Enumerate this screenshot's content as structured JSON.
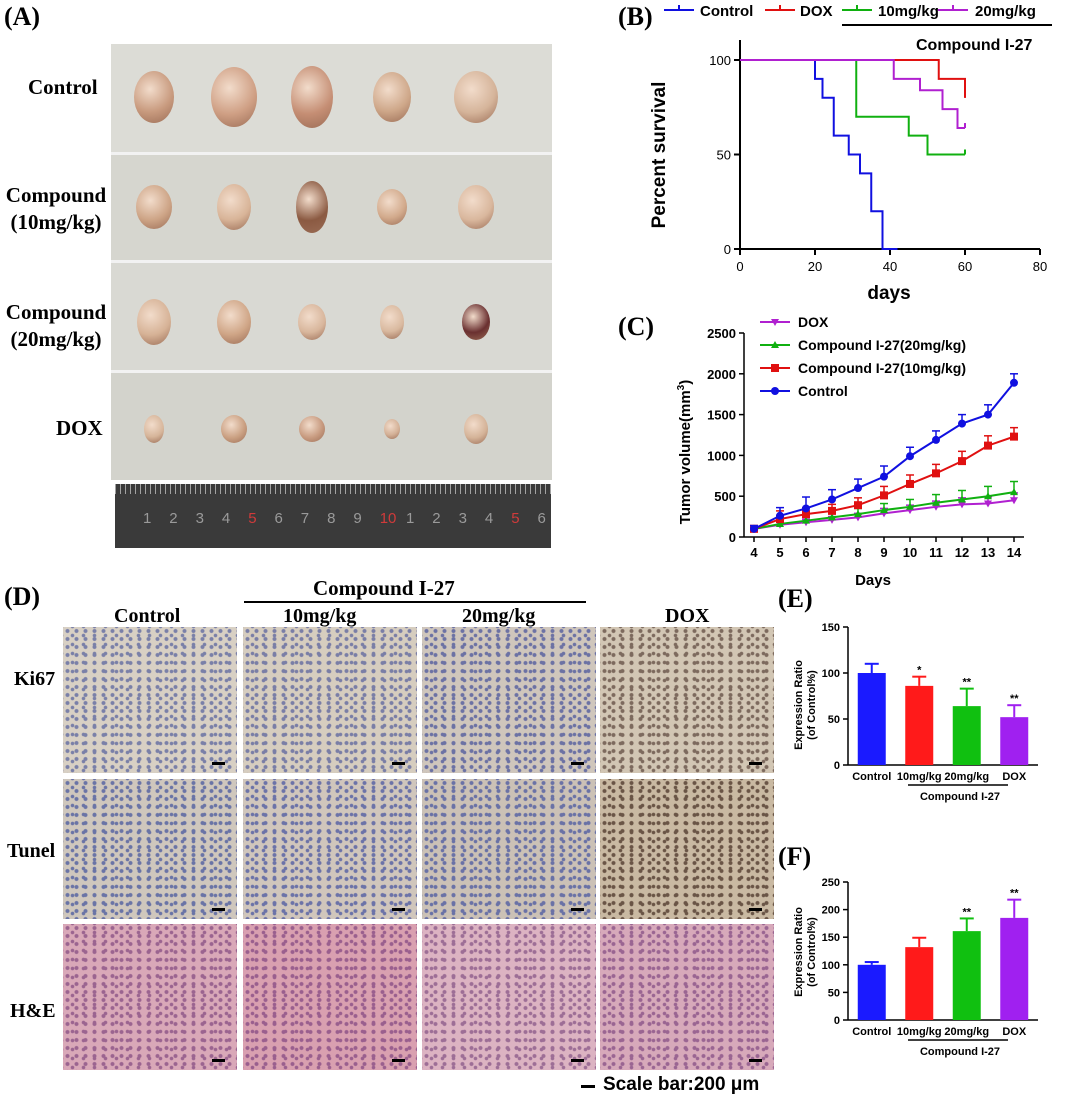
{
  "panelA": {
    "letter": "(A)",
    "rows": [
      {
        "label": [
          "Control"
        ]
      },
      {
        "label": [
          "Compound",
          "(10mg/kg)"
        ]
      },
      {
        "label": [
          "Compound",
          "(20mg/kg)"
        ]
      },
      {
        "label": [
          "DOX"
        ]
      }
    ],
    "ruler_numbers": [
      "1",
      "2",
      "3",
      "4",
      "5",
      "6",
      "7",
      "8",
      "9",
      "10",
      "1",
      "2",
      "3",
      "4",
      "5",
      "6"
    ]
  },
  "panelB": {
    "letter": "(B)",
    "legend": [
      "Control",
      "DOX",
      "10mg/kg",
      "20mg/kg"
    ],
    "group_label": "Compound I-27",
    "xlabel": "days",
    "ylabel": "Percent survival",
    "xticks": [
      "0",
      "20",
      "40",
      "60",
      "80"
    ],
    "yticks": [
      "0",
      "50",
      "100"
    ]
  },
  "panelC": {
    "letter": "(C)",
    "legend": [
      "DOX",
      "Compound I-27(20mg/kg)",
      "Compound I-27(10mg/kg)",
      "Control"
    ],
    "xlabel": "Days",
    "ylabel_main": "Tumor volume(mm",
    "ylabel_sup": "3",
    "ylabel_end": ")",
    "xticks": [
      "4",
      "5",
      "6",
      "7",
      "8",
      "9",
      "10",
      "11",
      "12",
      "13",
      "14"
    ],
    "yticks": [
      "0",
      "500",
      "1000",
      "1500",
      "2000",
      "2500"
    ]
  },
  "panelD": {
    "letter": "(D)",
    "group_label": "Compound I-27",
    "columns": [
      "Control",
      "10mg/kg",
      "20mg/kg",
      "DOX"
    ],
    "rows": [
      "Ki67",
      "Tunel",
      "H&E"
    ]
  },
  "panelE": {
    "letter": "(E)",
    "ylabel1": "Expression Ratio",
    "ylabel2": "(of Control%)",
    "group_label": "Compound I-27"
  },
  "panelF": {
    "letter": "(F)",
    "ylabel1": "Expression Ratio",
    "ylabel2": "(of Control%)",
    "group_label": "Compound I-27"
  },
  "scale_bar": "Scale bar:200 μm",
  "chart_data": [
    {
      "id": "B",
      "type": "line",
      "title": "",
      "xlabel": "days",
      "ylabel": "Percent survival",
      "xlim": [
        0,
        80
      ],
      "ylim": [
        0,
        100
      ],
      "series": [
        {
          "name": "Control",
          "color": "#1010e0",
          "x": [
            0,
            20,
            22,
            25,
            29,
            32,
            35,
            38,
            42
          ],
          "y": [
            100,
            90,
            80,
            60,
            50,
            40,
            20,
            0,
            0
          ]
        },
        {
          "name": "DOX",
          "color": "#e01010",
          "x": [
            0,
            40,
            53,
            60
          ],
          "y": [
            100,
            100,
            90,
            80
          ]
        },
        {
          "name": "10mg/kg",
          "color": "#10b010",
          "x": [
            0,
            27,
            31,
            45,
            50,
            60
          ],
          "y": [
            100,
            100,
            70,
            60,
            50,
            50
          ]
        },
        {
          "name": "20mg/kg",
          "color": "#b020d0",
          "x": [
            0,
            36,
            41,
            48,
            54,
            58,
            60
          ],
          "y": [
            100,
            100,
            90,
            84,
            74,
            64,
            64
          ]
        }
      ]
    },
    {
      "id": "C",
      "type": "line",
      "xlabel": "Days",
      "ylabel": "Tumor volume(mm3)",
      "xlim": [
        4,
        14
      ],
      "ylim": [
        0,
        2500
      ],
      "x": [
        4,
        5,
        6,
        7,
        8,
        9,
        10,
        11,
        12,
        13,
        14
      ],
      "series": [
        {
          "name": "DOX",
          "color": "#b020d0",
          "marker": "triangle-down",
          "values": [
            100,
            150,
            180,
            210,
            240,
            290,
            330,
            370,
            400,
            410,
            450
          ],
          "err": [
            30,
            30,
            40,
            40,
            50,
            60,
            60,
            70,
            80,
            80,
            90
          ]
        },
        {
          "name": "Compound I-27(20mg/kg)",
          "color": "#10b010",
          "marker": "triangle",
          "values": [
            100,
            160,
            200,
            240,
            280,
            330,
            370,
            420,
            460,
            500,
            550
          ],
          "err": [
            30,
            40,
            50,
            60,
            70,
            80,
            90,
            100,
            110,
            120,
            130
          ]
        },
        {
          "name": "Compound I-27(10mg/kg)",
          "color": "#e01010",
          "marker": "square",
          "values": [
            100,
            220,
            280,
            320,
            390,
            510,
            650,
            780,
            930,
            1120,
            1230
          ],
          "err": [
            40,
            100,
            80,
            80,
            90,
            110,
            110,
            110,
            120,
            120,
            110
          ]
        },
        {
          "name": "Control",
          "color": "#1010e0",
          "marker": "circle",
          "values": [
            100,
            260,
            350,
            460,
            600,
            740,
            990,
            1190,
            1390,
            1500,
            1890
          ],
          "err": [
            40,
            100,
            140,
            120,
            110,
            130,
            110,
            110,
            110,
            120,
            110
          ]
        }
      ]
    },
    {
      "id": "E",
      "type": "bar",
      "categories": [
        "Control",
        "10mg/kg",
        "20mg/kg",
        "DOX"
      ],
      "values": [
        100,
        86,
        64,
        52
      ],
      "err": [
        10,
        10,
        19,
        13
      ],
      "sig": [
        "",
        "*",
        "**",
        "**"
      ],
      "colors": [
        "#1a1aff",
        "#ff1a1a",
        "#10c010",
        "#a020f0"
      ],
      "ylim": [
        0,
        150
      ],
      "yticks": [
        "0",
        "50",
        "100",
        "150"
      ]
    },
    {
      "id": "F",
      "type": "bar",
      "categories": [
        "Control",
        "10mg/kg",
        "20mg/kg",
        "DOX"
      ],
      "values": [
        100,
        132,
        161,
        185
      ],
      "err": [
        5,
        17,
        23,
        33
      ],
      "sig": [
        "",
        "",
        "**",
        "**"
      ],
      "colors": [
        "#1a1aff",
        "#ff1a1a",
        "#10c010",
        "#a020f0"
      ],
      "ylim": [
        0,
        250
      ],
      "yticks": [
        "0",
        "50",
        "100",
        "150",
        "200",
        "250"
      ]
    }
  ]
}
